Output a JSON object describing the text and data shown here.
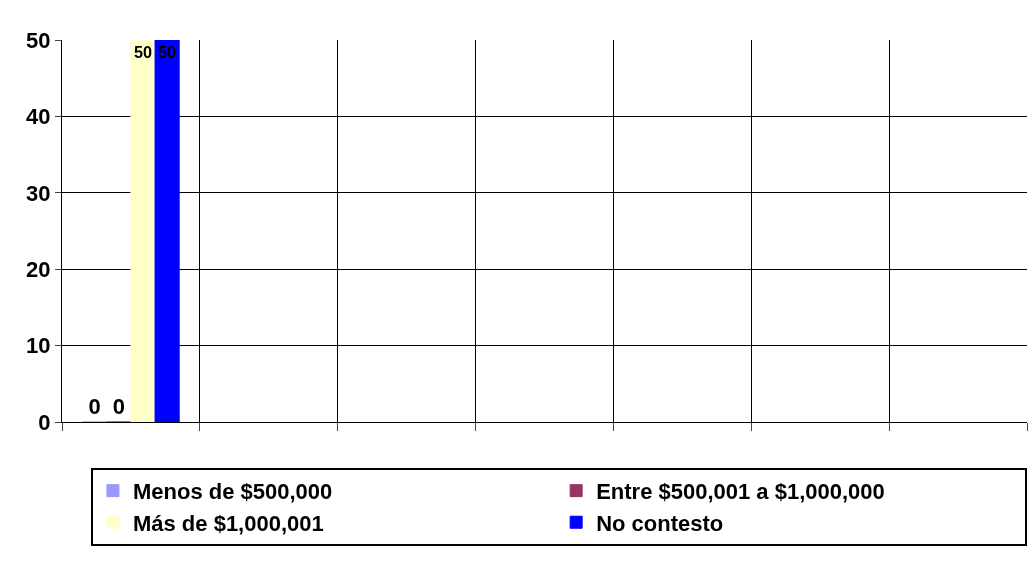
{
  "chart_data": {
    "type": "bar",
    "categories": [
      null,
      null,
      null,
      null,
      null,
      null,
      null
    ],
    "series": [
      {
        "name": "Menos de $500,000",
        "color": "#9999ff",
        "values": [
          0,
          null,
          null,
          null,
          null,
          null,
          null
        ]
      },
      {
        "name": "Entre $500,001 a $1,000,000",
        "color": "#993366",
        "values": [
          0,
          null,
          null,
          null,
          null,
          null,
          null
        ]
      },
      {
        "name": "Más de $1,000,001",
        "color": "#ffffcc",
        "values": [
          50,
          null,
          null,
          null,
          null,
          null,
          null
        ]
      },
      {
        "name": "No contesto",
        "color": "#0000ff",
        "values": [
          50,
          null,
          null,
          null,
          null,
          null,
          null
        ]
      }
    ],
    "ylim": [
      0,
      50
    ],
    "yticks": [
      0,
      10,
      20,
      30,
      40,
      50
    ],
    "grid": true,
    "legend": "bottom",
    "data_labels": true
  }
}
